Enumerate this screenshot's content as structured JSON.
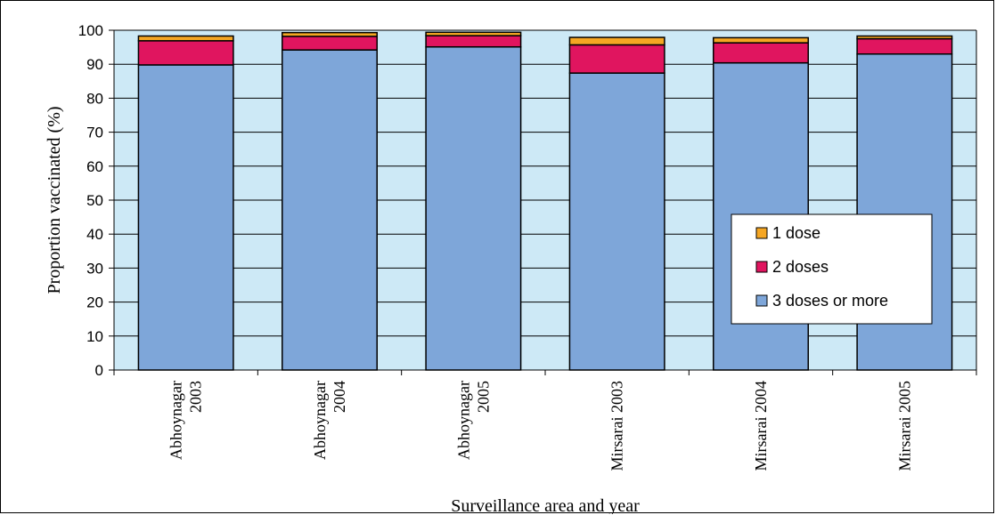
{
  "chart_data": {
    "type": "stacked-bar",
    "xlabel": "Surveillance area and year",
    "ylabel": "Proportion vaccinated (%)",
    "ylim": [
      0,
      100
    ],
    "yticks": [
      0,
      10,
      20,
      30,
      40,
      50,
      60,
      70,
      80,
      90,
      100
    ],
    "grid": true,
    "legend_position": "right",
    "categories": [
      [
        "Abhoynagar",
        "2003"
      ],
      [
        "Abhoynagar",
        "2004"
      ],
      [
        "Abhoynagar",
        "2005"
      ],
      [
        "Mirsarai 2003"
      ],
      [
        "Mirsarai 2004"
      ],
      [
        "Mirsarai 2005"
      ]
    ],
    "series": [
      {
        "name": "3 doses or more",
        "color": "#7ea6d9",
        "values": [
          89.8,
          94.2,
          95.1,
          87.4,
          90.4,
          93.0
        ]
      },
      {
        "name": "2 doses",
        "color": "#e0155f",
        "values": [
          7.1,
          4.0,
          3.3,
          8.3,
          5.9,
          4.5
        ]
      },
      {
        "name": "1 dose",
        "color": "#f5a623",
        "values": [
          1.4,
          1.1,
          1.0,
          2.2,
          1.5,
          0.8
        ]
      }
    ],
    "legend_order": [
      "1 dose",
      "2 doses",
      "3 doses or more"
    ],
    "plot_background": "#cde9f6"
  }
}
